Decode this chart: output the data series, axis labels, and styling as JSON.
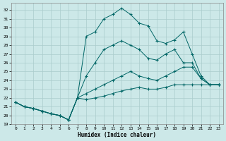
{
  "title": "",
  "xlabel": "Humidex (Indice chaleur)",
  "background_color": "#cce8e8",
  "grid_color": "#aacccc",
  "line_color": "#006666",
  "xlim": [
    -0.5,
    23.5
  ],
  "ylim": [
    19,
    32.8
  ],
  "yticks": [
    19,
    20,
    21,
    22,
    23,
    24,
    25,
    26,
    27,
    28,
    29,
    30,
    31,
    32
  ],
  "xticks": [
    0,
    1,
    2,
    3,
    4,
    5,
    6,
    7,
    8,
    9,
    10,
    11,
    12,
    13,
    14,
    15,
    16,
    17,
    18,
    19,
    20,
    21,
    22,
    23
  ],
  "line1_x": [
    0,
    1,
    2,
    3,
    4,
    5,
    6,
    7,
    8,
    9,
    10,
    11,
    12,
    13,
    14,
    15,
    16,
    17,
    18,
    19,
    20,
    21,
    22,
    23
  ],
  "line1_y": [
    21.5,
    21.0,
    20.8,
    20.5,
    20.2,
    20.0,
    19.5,
    22.0,
    29.0,
    29.5,
    31.0,
    31.5,
    32.2,
    31.5,
    30.5,
    30.2,
    28.5,
    28.2,
    28.6,
    29.5,
    27.0,
    24.5,
    23.5,
    23.5
  ],
  "line2_x": [
    0,
    1,
    2,
    3,
    4,
    5,
    6,
    7,
    8,
    9,
    10,
    11,
    12,
    13,
    14,
    15,
    16,
    17,
    18,
    19,
    20,
    21,
    22,
    23
  ],
  "line2_y": [
    21.5,
    21.0,
    20.8,
    20.5,
    20.2,
    20.0,
    19.5,
    22.0,
    24.5,
    26.0,
    27.5,
    28.0,
    28.5,
    28.0,
    27.5,
    26.5,
    26.3,
    27.0,
    27.5,
    26.0,
    26.0,
    24.2,
    23.5,
    23.5
  ],
  "line3_x": [
    0,
    1,
    2,
    3,
    4,
    5,
    6,
    7,
    8,
    9,
    10,
    11,
    12,
    13,
    14,
    15,
    16,
    17,
    18,
    19,
    20,
    21,
    22,
    23
  ],
  "line3_y": [
    21.5,
    21.0,
    20.8,
    20.5,
    20.2,
    20.0,
    19.5,
    22.0,
    22.5,
    23.0,
    23.5,
    24.0,
    24.5,
    25.0,
    24.5,
    24.2,
    24.0,
    24.5,
    25.0,
    25.5,
    25.5,
    24.2,
    23.5,
    23.5
  ],
  "line4_x": [
    0,
    1,
    2,
    3,
    4,
    5,
    6,
    7,
    8,
    9,
    10,
    11,
    12,
    13,
    14,
    15,
    16,
    17,
    18,
    19,
    20,
    21,
    22,
    23
  ],
  "line4_y": [
    21.5,
    21.0,
    20.8,
    20.5,
    20.2,
    20.0,
    19.5,
    22.0,
    21.8,
    22.0,
    22.2,
    22.5,
    22.8,
    23.0,
    23.2,
    23.0,
    23.0,
    23.2,
    23.5,
    23.5,
    23.5,
    23.5,
    23.5,
    23.5
  ]
}
